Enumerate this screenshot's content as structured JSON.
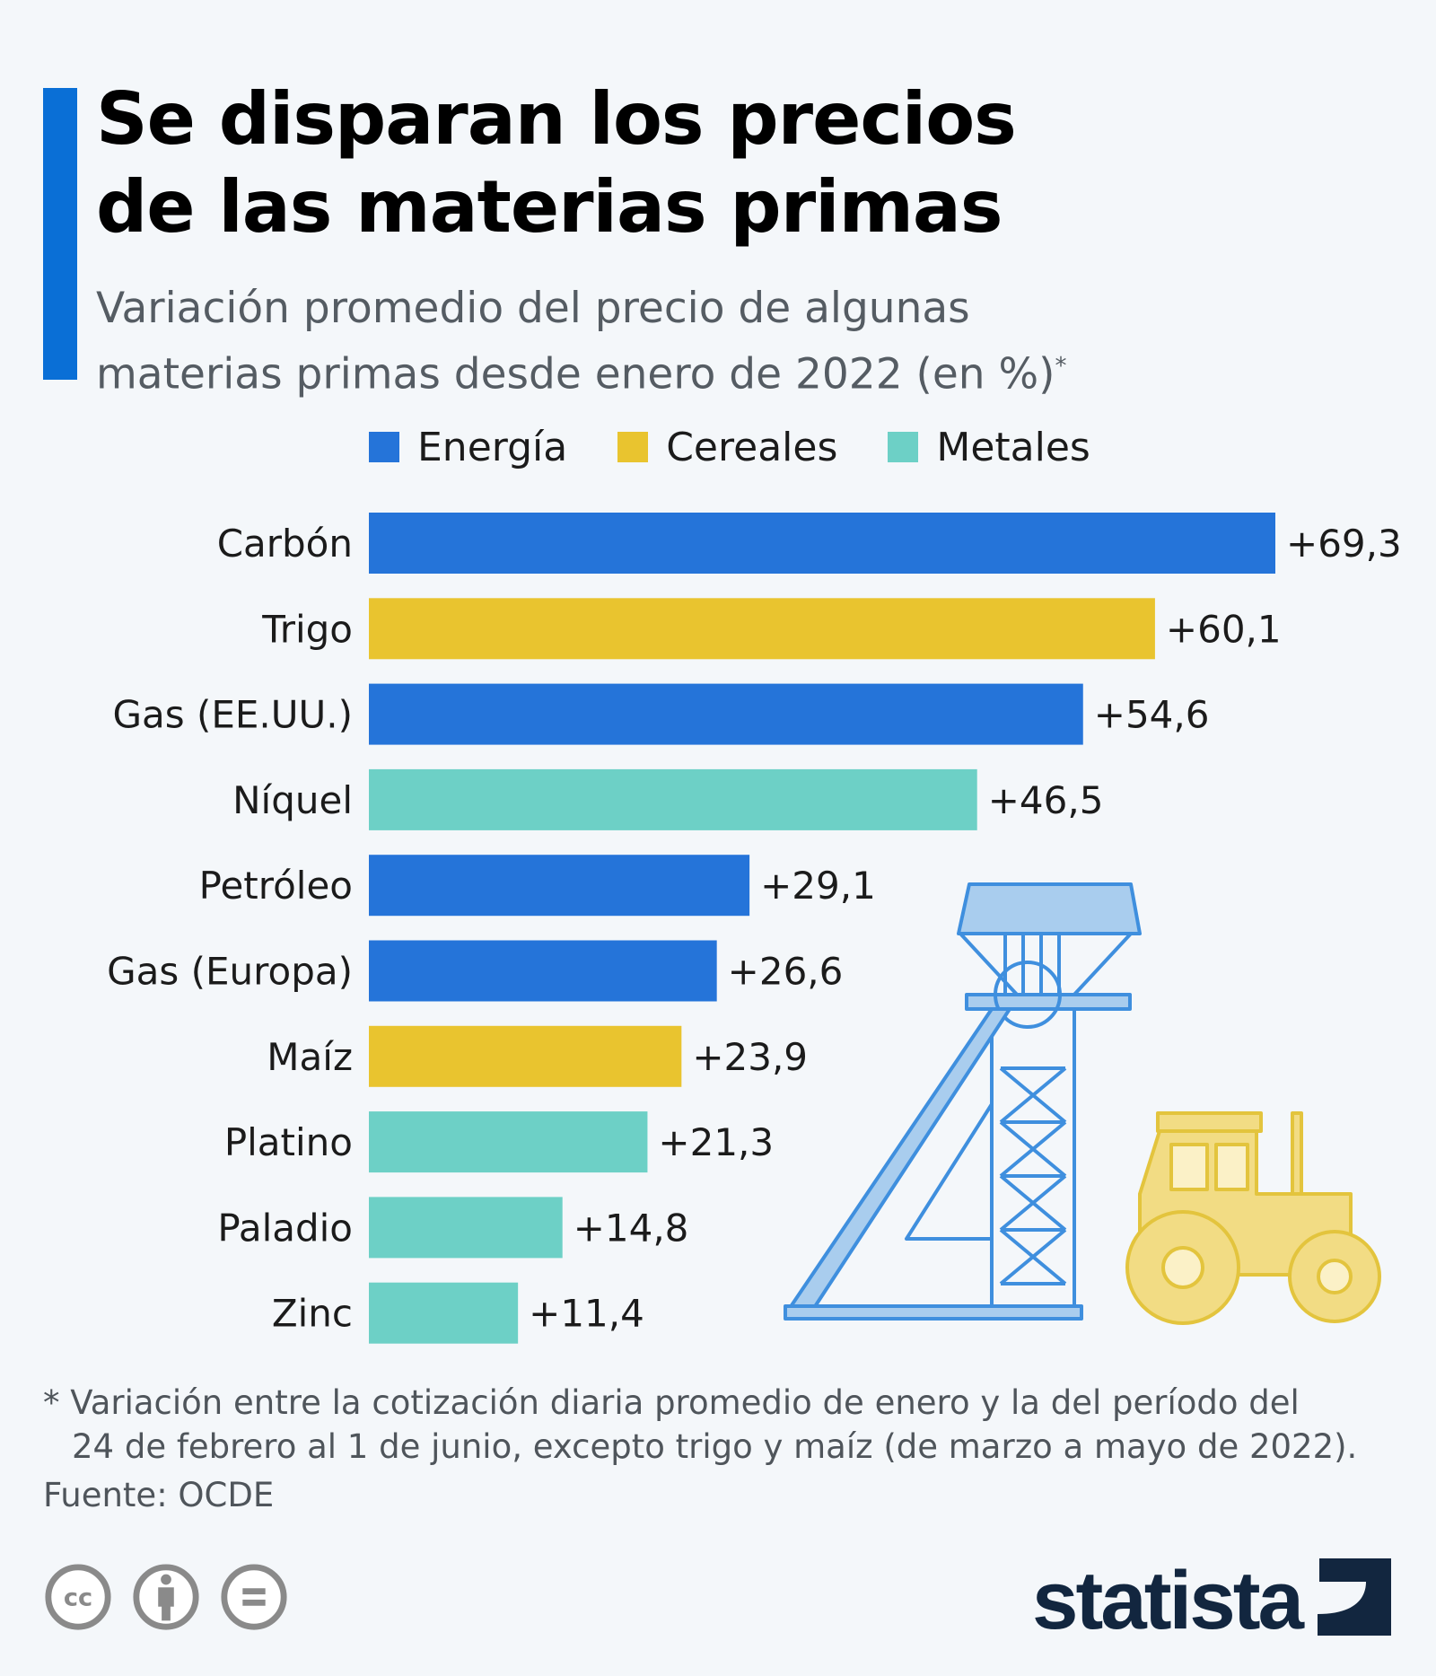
{
  "header": {
    "title_line1": "Se disparan los precios",
    "title_line2": "de las materias primas",
    "subtitle_line1": "Variación promedio del precio de algunas",
    "subtitle_line2": "materias primas desde enero de 2022 (en %)",
    "subtitle_mark": "*"
  },
  "legend": [
    {
      "label": "Energía",
      "color": "#2574d9"
    },
    {
      "label": "Cereales",
      "color": "#e9c42f"
    },
    {
      "label": "Metales",
      "color": "#6dd0c6"
    }
  ],
  "chart_data": {
    "type": "bar",
    "orientation": "horizontal",
    "categories": [
      "Carbón",
      "Trigo",
      "Gas (EE.UU.)",
      "Níquel",
      "Petróleo",
      "Gas (Europa)",
      "Maíz",
      "Platino",
      "Paladio",
      "Zinc"
    ],
    "values": [
      69.3,
      60.1,
      54.6,
      46.5,
      29.1,
      26.6,
      23.9,
      21.3,
      14.8,
      11.4
    ],
    "value_labels": [
      "+69,3",
      "+60,1",
      "+54,6",
      "+46,5",
      "+29,1",
      "+26,6",
      "+23,9",
      "+21,3",
      "+14,8",
      "+11,4"
    ],
    "groups": [
      "Energía",
      "Cereales",
      "Energía",
      "Metales",
      "Energía",
      "Energía",
      "Cereales",
      "Metales",
      "Metales",
      "Metales"
    ],
    "xlim": [
      0,
      69.3
    ],
    "grid": false,
    "legend_placement": "top"
  },
  "footer": {
    "note_line1": "* Variación entre la cotización diaria promedio de enero y la del período del",
    "note_line2": "24 de febrero al 1 de junio, excepto trigo y maíz (de marzo a mayo de 2022).",
    "source": "Fuente: OCDE",
    "license_icons": [
      "cc-icon",
      "attribution-icon",
      "no-derivatives-icon"
    ],
    "logo_text": "statista"
  }
}
